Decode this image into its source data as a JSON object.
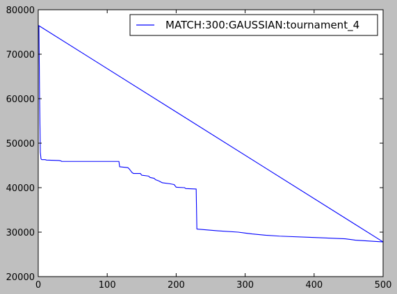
{
  "chart_data": {
    "type": "line",
    "title": "",
    "xlabel": "",
    "ylabel": "",
    "xlim": [
      0,
      500
    ],
    "ylim": [
      20000,
      80000
    ],
    "xticks": [
      0,
      100,
      200,
      300,
      400,
      500
    ],
    "yticks": [
      20000,
      30000,
      40000,
      50000,
      60000,
      70000,
      80000
    ],
    "grid": false,
    "legend_position": "top-right",
    "colors": {
      "figure_bg": "#bfbfbf",
      "axes_bg": "#ffffff",
      "series": "#0000ff"
    },
    "series": [
      {
        "name": "MATCH:300:GAUSSIAN:tournament_4",
        "points": [
          [
            0,
            76500
          ],
          [
            1,
            76200
          ],
          [
            2,
            60000
          ],
          [
            3,
            48000
          ],
          [
            4,
            46500
          ],
          [
            5,
            46300
          ],
          [
            10,
            46300
          ],
          [
            12,
            46200
          ],
          [
            30,
            46100
          ],
          [
            33,
            46000
          ],
          [
            34,
            45900
          ],
          [
            117,
            45900
          ],
          [
            118,
            44700
          ],
          [
            130,
            44500
          ],
          [
            132,
            44200
          ],
          [
            134,
            43800
          ],
          [
            136,
            43400
          ],
          [
            138,
            43200
          ],
          [
            148,
            43200
          ],
          [
            150,
            42800
          ],
          [
            160,
            42600
          ],
          [
            162,
            42300
          ],
          [
            168,
            42100
          ],
          [
            170,
            41800
          ],
          [
            175,
            41500
          ],
          [
            180,
            41100
          ],
          [
            190,
            40900
          ],
          [
            197,
            40700
          ],
          [
            200,
            40100
          ],
          [
            212,
            40000
          ],
          [
            214,
            39800
          ],
          [
            229,
            39700
          ],
          [
            230,
            30700
          ],
          [
            260,
            30300
          ],
          [
            290,
            30000
          ],
          [
            300,
            29800
          ],
          [
            310,
            29600
          ],
          [
            330,
            29300
          ],
          [
            350,
            29100
          ],
          [
            400,
            28800
          ],
          [
            445,
            28500
          ],
          [
            460,
            28200
          ],
          [
            480,
            28000
          ],
          [
            500,
            27800
          ],
          [
            0,
            76500
          ]
        ]
      }
    ]
  }
}
